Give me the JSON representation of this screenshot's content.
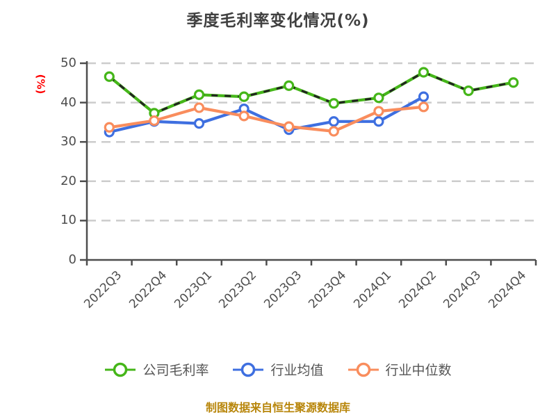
{
  "title": "季度毛利率变化情况(%)",
  "y_axis_unit_label": "(%)",
  "footer_note": "制图数据来自恒生聚源数据库",
  "colors": {
    "title_text": "#404040",
    "axis": "#4d4d4d",
    "tick_label": "#4d4d4d",
    "grid": "#cccccc",
    "ylabel_red": "#ff0000",
    "legend_text": "#555555",
    "footer_gold": "#B8860B",
    "series_company_green": "#45B619",
    "series_company_dash_overlay": "#222222",
    "series_industry_mean_blue": "#3E6FE0",
    "series_industry_median_orange": "#F98D5D",
    "marker_fill": "#ffffff",
    "background": "#ffffff"
  },
  "chart_data": {
    "type": "line",
    "title": "季度毛利率变化情况(%)",
    "xlabel": "",
    "ylabel": "(%)",
    "ylim": [
      0,
      50
    ],
    "y_ticks": [
      0,
      10,
      20,
      30,
      40,
      50
    ],
    "grid": "horizontal dashed",
    "legend_position": "bottom",
    "categories": [
      "2022Q3",
      "2022Q4",
      "2023Q1",
      "2023Q2",
      "2023Q3",
      "2023Q4",
      "2024Q1",
      "2024Q2",
      "2024Q3",
      "2024Q4"
    ],
    "series": [
      {
        "name": "公司毛利率",
        "color": "#45B619",
        "dashed_overlay": true,
        "values": [
          46.6,
          37.3,
          42.0,
          41.5,
          44.3,
          39.8,
          41.2,
          47.7,
          43.0,
          45.1
        ]
      },
      {
        "name": "行业均值",
        "color": "#3E6FE0",
        "dashed_overlay": false,
        "values": [
          32.5,
          35.2,
          34.7,
          38.4,
          33.1,
          35.2,
          35.2,
          41.5,
          null,
          null
        ]
      },
      {
        "name": "行业中位数",
        "color": "#F98D5D",
        "dashed_overlay": false,
        "values": [
          33.7,
          35.4,
          38.7,
          36.6,
          33.9,
          32.7,
          37.8,
          38.9,
          null,
          null
        ]
      }
    ]
  }
}
